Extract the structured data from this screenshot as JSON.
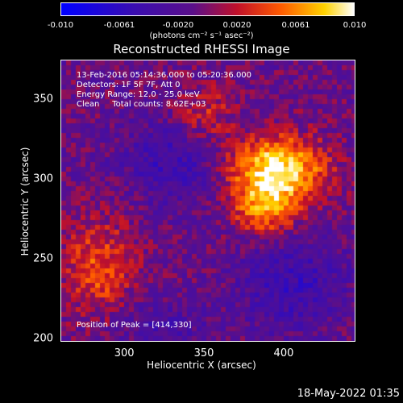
{
  "chart_data": {
    "type": "heatmap",
    "title": "Reconstructed RHESSI Image",
    "xlabel": "Heliocentric X (arcsec)",
    "ylabel": "Heliocentric Y (arcsec)",
    "xlim": [
      260,
      445
    ],
    "ylim": [
      198,
      375
    ],
    "x_ticks": [
      "300",
      "350",
      "400"
    ],
    "y_ticks": [
      "200",
      "250",
      "300",
      "350"
    ],
    "colorbar": {
      "ticks": [
        "-0.010",
        "-0.0061",
        "-0.0020",
        "0.0020",
        "0.0061",
        "0.010"
      ],
      "range": [
        -0.01,
        0.01
      ],
      "units": "(photons cm⁻² s⁻¹ asec⁻²)"
    },
    "annotations": [
      "13-Feb-2016 05:14:36.000 to 05:20:36.000",
      "Detectors: 1F 5F 7F, Att 0",
      "Energy Range: 12.0 - 25.0 keV",
      "Clean     Total counts: 8.62E+03"
    ],
    "peak_label": "Position of Peak = [414,330]",
    "peak_position": [
      414,
      330
    ],
    "colors": {
      "low": "#1010ff",
      "mid": "#5a0f9a",
      "high": "#ff6a00",
      "max": "#ffffff"
    }
  },
  "footer": {
    "timestamp": "18-May-2022 01:35"
  }
}
